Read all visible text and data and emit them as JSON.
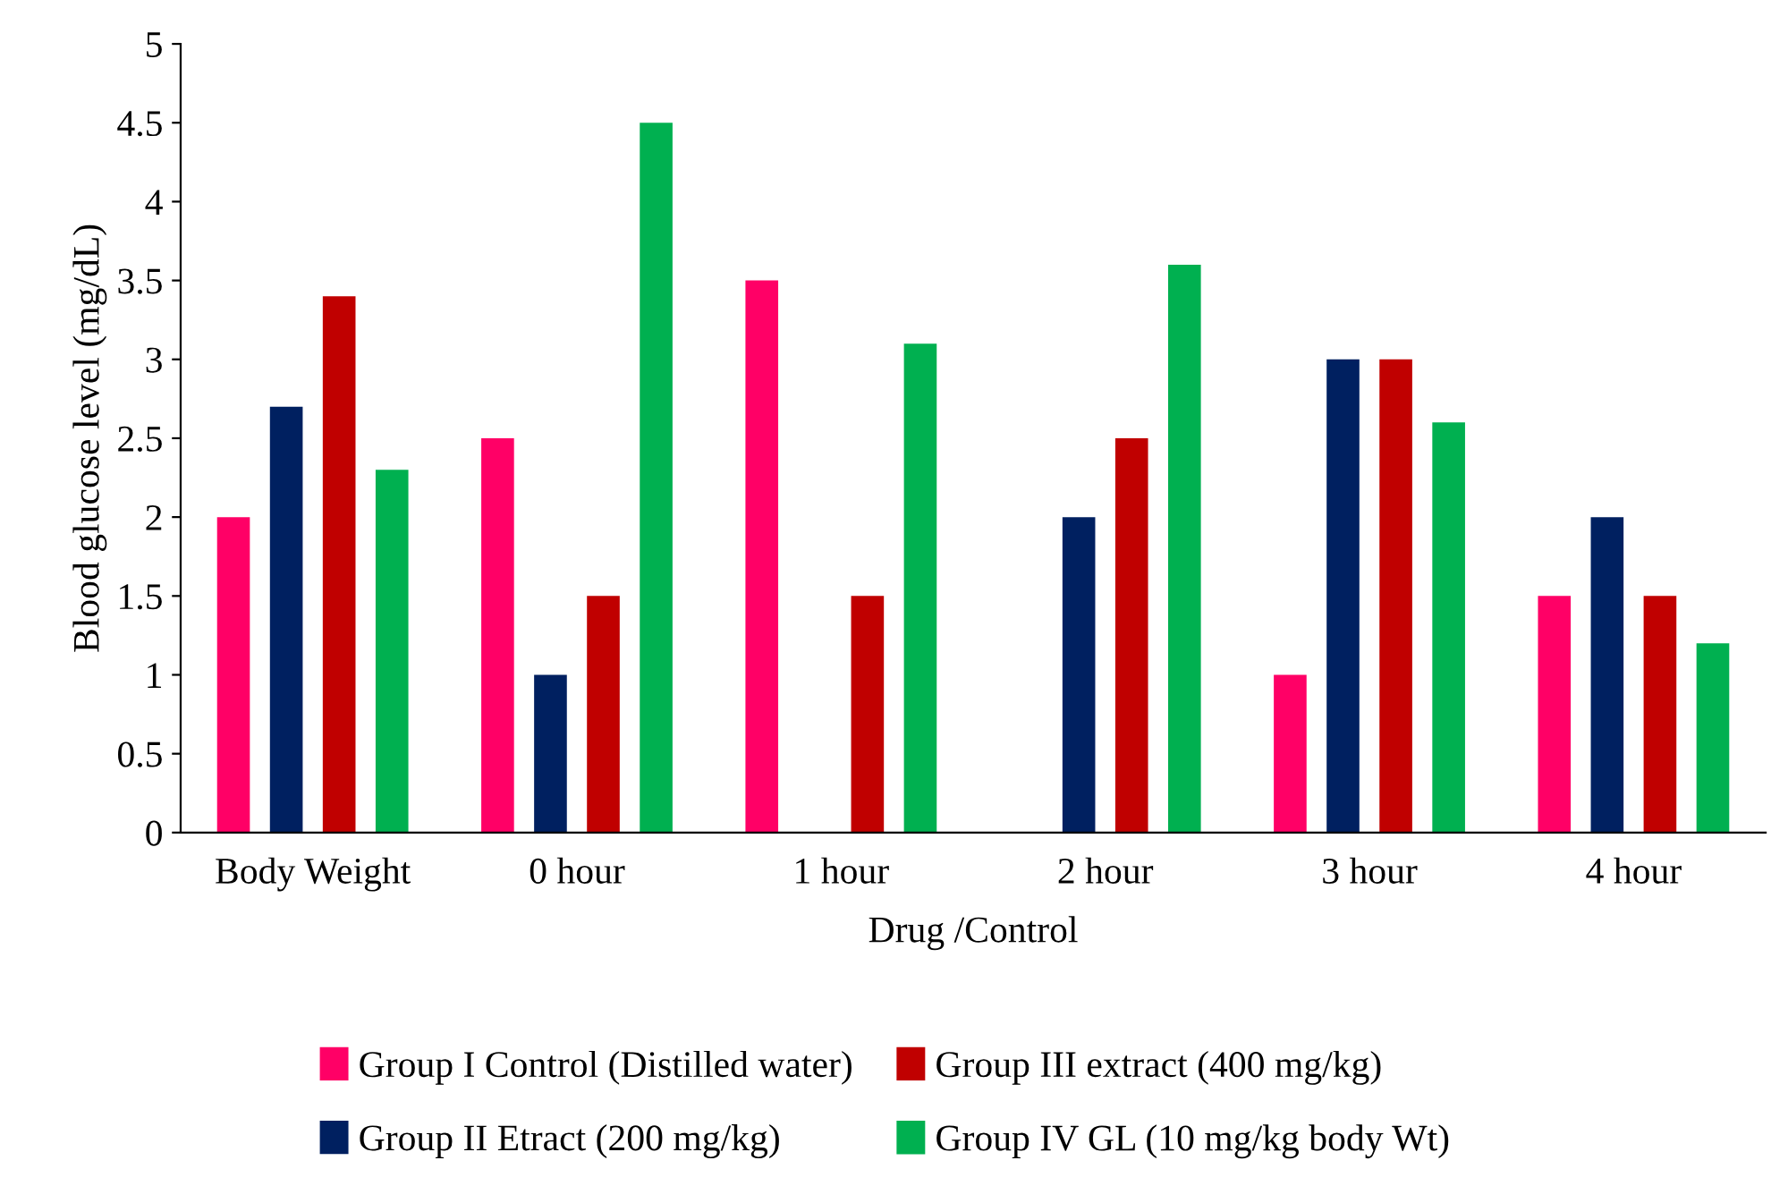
{
  "chart_data": {
    "type": "bar",
    "xlabel": "Drug /Control",
    "ylabel": "Blood glucose level (mg/dL)",
    "categories": [
      "Body Weight",
      "0 hour",
      "1 hour",
      "2 hour",
      "3 hour",
      "4 hour"
    ],
    "series": [
      {
        "name": "Group I Control (Distilled water)",
        "color": "#ff0066",
        "values": [
          2,
          2.5,
          3.5,
          null,
          1,
          1.5
        ]
      },
      {
        "name": "Group II Etract (200 mg/kg)",
        "color": "#002060",
        "values": [
          2.7,
          1,
          null,
          2,
          3,
          2
        ]
      },
      {
        "name": "Group III extract (400 mg/kg)",
        "color": "#c00000",
        "values": [
          3.4,
          1.5,
          1.5,
          2.5,
          3,
          1.5
        ]
      },
      {
        "name": "Group IV GL (10 mg/kg body Wt)",
        "color": "#00b050",
        "values": [
          2.3,
          4.5,
          3.1,
          3.6,
          2.6,
          1.2
        ]
      }
    ],
    "ylim": [
      0,
      5
    ],
    "yticks": [
      0,
      0.5,
      1,
      1.5,
      2,
      2.5,
      3,
      3.5,
      4,
      4.5,
      5
    ],
    "grid": false,
    "legend": "bottom"
  }
}
